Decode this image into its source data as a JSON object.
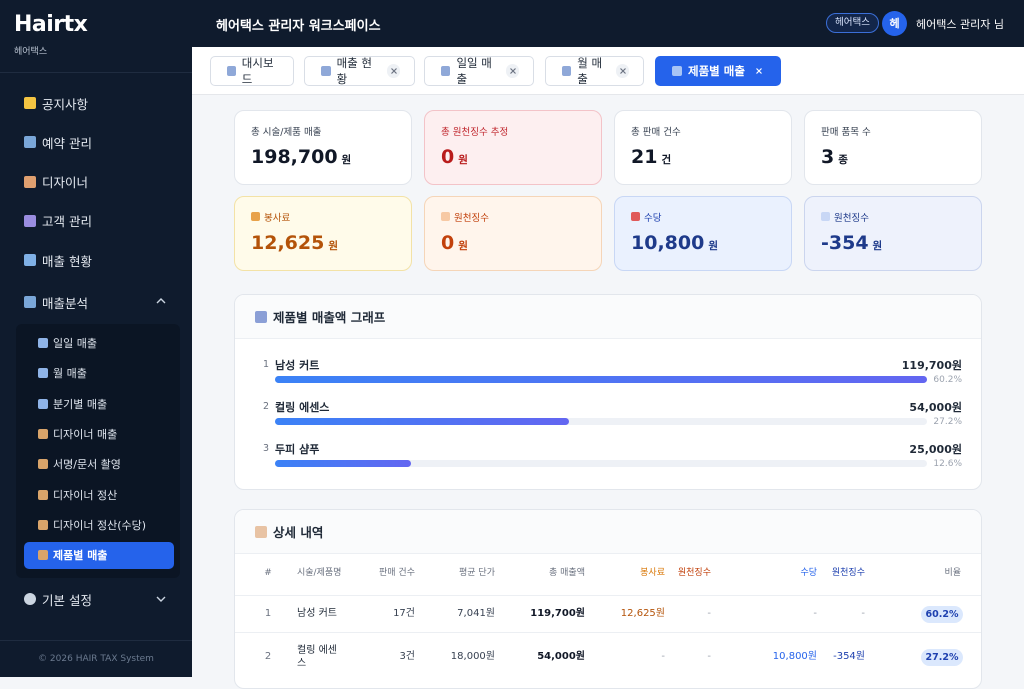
{
  "sidebar": {
    "brand": "Hairtx",
    "brand_sub": "헤어택스",
    "menu": [
      "공지사항",
      "예약 관리",
      "디자이너",
      "고객 관리",
      "매출 현황"
    ],
    "group": "매출분석",
    "submenu": [
      "일일 매출",
      "월 매출",
      "분기별 매출",
      "디자이너 매출",
      "서명/문서 촬영",
      "디자이너 정산",
      "디자이너 정산(수당)",
      "제품별 매출"
    ],
    "active": 7,
    "settings": "기본 설정",
    "footer": "© 2026 HAIR TAX System"
  },
  "header": {
    "title": "헤어택스 관리자 워크스페이스",
    "badge": "헤어택스",
    "avatar": "헤",
    "user": "헤어택스 관리자 님"
  },
  "tabs": [
    "대시보드",
    "매출 현황",
    "일일 매출",
    "월 매출",
    "제품별 매출"
  ],
  "cards": [
    {
      "label": "총 시술/제품 매출",
      "value": "198,700",
      "unit": "원"
    },
    {
      "label": "총 원천징수 추정",
      "value": "0",
      "unit": "원"
    },
    {
      "label": "총 판매 건수",
      "value": "21",
      "unit": "건"
    },
    {
      "label": "판매 품목 수",
      "value": "3",
      "unit": "종"
    },
    {
      "label": "봉사료",
      "value": "12,625",
      "unit": "원"
    },
    {
      "label": "원천징수",
      "value": "0",
      "unit": "원"
    },
    {
      "label": "수당",
      "value": "10,800",
      "unit": "원"
    },
    {
      "label": "원천징수",
      "value": "-354",
      "unit": "원"
    }
  ],
  "chart_data": {
    "type": "bar",
    "title": "제품별 매출액 그래프",
    "items": [
      {
        "rank": "1",
        "name": "남성 커트",
        "value": 119700,
        "value_label": "119,700원",
        "share": "60.2%"
      },
      {
        "rank": "2",
        "name": "컬링 에센스",
        "value": 54000,
        "value_label": "54,000원",
        "share": "27.2%"
      },
      {
        "rank": "3",
        "name": "두피 샴푸",
        "value": 25000,
        "value_label": "25,000원",
        "share": "12.6%"
      }
    ]
  },
  "table": {
    "title": "상세 내역",
    "columns": [
      "#",
      "시술/제품명",
      "판매 건수",
      "평균 단가",
      "총 매출액",
      "봉사료",
      "원천징수",
      "수당",
      "원천징수",
      "비율"
    ],
    "rows": [
      [
        "1",
        "남성 커트",
        "17건",
        "7,041원",
        "119,700원",
        "12,625원",
        "-",
        "-",
        "-",
        "60.2%"
      ],
      [
        "2",
        "컬링 에센스",
        "3건",
        "18,000원",
        "54,000원",
        "-",
        "-",
        "10,800원",
        "-354원",
        "27.2%"
      ]
    ]
  }
}
